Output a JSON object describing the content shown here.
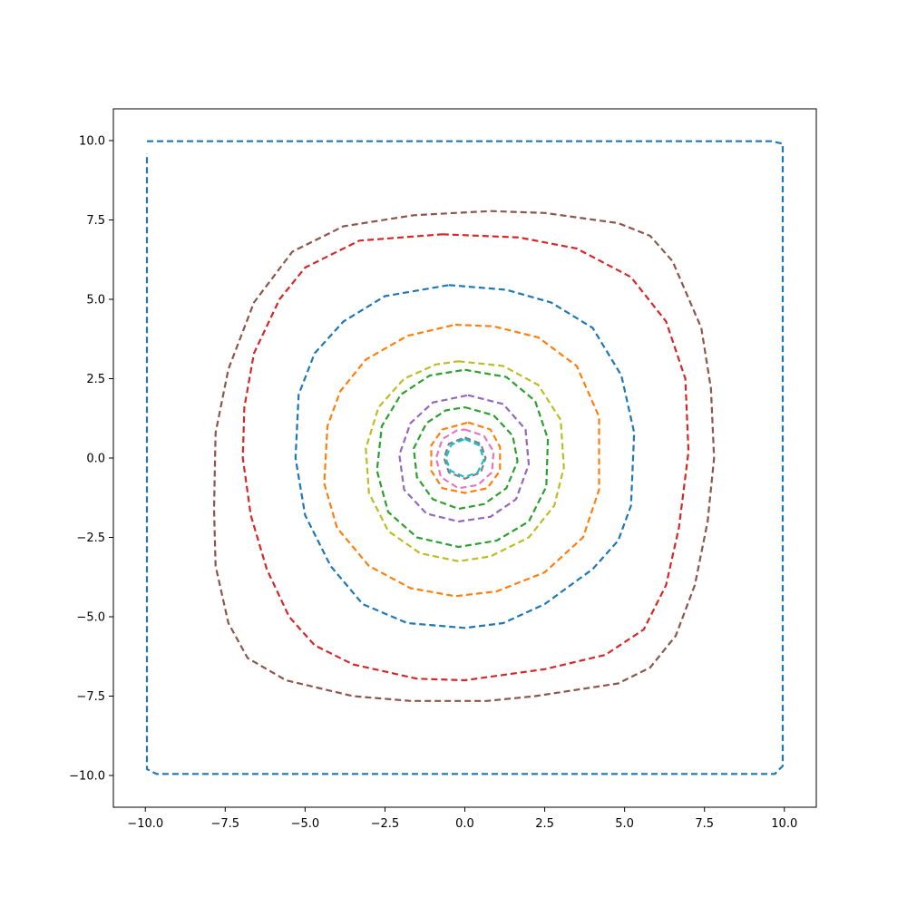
{
  "chart_data": {
    "type": "line",
    "title": "",
    "xlabel": "",
    "ylabel": "",
    "xlim": [
      -11,
      11
    ],
    "ylim": [
      -11,
      11
    ],
    "grid": false,
    "xticks": [
      {
        "value": -10,
        "label": "−10.0"
      },
      {
        "value": -7.5,
        "label": "−7.5"
      },
      {
        "value": -5,
        "label": "−5.0"
      },
      {
        "value": -2.5,
        "label": "−2.5"
      },
      {
        "value": 0,
        "label": "0.0"
      },
      {
        "value": 2.5,
        "label": "2.5"
      },
      {
        "value": 5,
        "label": "5.0"
      },
      {
        "value": 7.5,
        "label": "7.5"
      },
      {
        "value": 10,
        "label": "10.0"
      }
    ],
    "yticks": [
      {
        "value": -10,
        "label": "−10.0"
      },
      {
        "value": -7.5,
        "label": "−7.5"
      },
      {
        "value": -5,
        "label": "−5.0"
      },
      {
        "value": -2.5,
        "label": "−2.5"
      },
      {
        "value": 0,
        "label": "0.0"
      },
      {
        "value": 2.5,
        "label": "2.5"
      },
      {
        "value": 5,
        "label": "5.0"
      },
      {
        "value": 7.5,
        "label": "7.5"
      },
      {
        "value": 10,
        "label": "10.0"
      }
    ],
    "series": [
      {
        "color": "#1f77b4",
        "points": [
          [
            -9.95,
            9.98
          ],
          [
            -5,
            9.98
          ],
          [
            0,
            9.98
          ],
          [
            5,
            9.98
          ],
          [
            9.6,
            9.98
          ],
          [
            9.95,
            9.9
          ],
          [
            9.95,
            5
          ],
          [
            9.95,
            0
          ],
          [
            9.95,
            -5
          ],
          [
            9.95,
            -9.7
          ],
          [
            9.7,
            -9.95
          ],
          [
            5,
            -9.95
          ],
          [
            0,
            -9.95
          ],
          [
            -5,
            -9.95
          ],
          [
            -9.65,
            -9.95
          ],
          [
            -9.95,
            -9.8
          ],
          [
            -9.95,
            -5
          ],
          [
            -9.95,
            0
          ],
          [
            -9.95,
            5
          ],
          [
            -9.95,
            9.6
          ]
        ]
      },
      {
        "color": "#8c564b",
        "points": [
          [
            0.8,
            7.78
          ],
          [
            2.5,
            7.72
          ],
          [
            4.8,
            7.4
          ],
          [
            5.8,
            7.0
          ],
          [
            6.5,
            6.2
          ],
          [
            7.4,
            4.1
          ],
          [
            7.7,
            2.2
          ],
          [
            7.8,
            0
          ],
          [
            7.6,
            -2
          ],
          [
            7.2,
            -4
          ],
          [
            6.6,
            -5.6
          ],
          [
            5.8,
            -6.6
          ],
          [
            4.8,
            -7.1
          ],
          [
            2.2,
            -7.5
          ],
          [
            0.7,
            -7.65
          ],
          [
            -1.7,
            -7.65
          ],
          [
            -3.5,
            -7.5
          ],
          [
            -5.6,
            -7
          ],
          [
            -6.8,
            -6.3
          ],
          [
            -7.4,
            -5.2
          ],
          [
            -7.8,
            -3.4
          ],
          [
            -7.85,
            -1.6
          ],
          [
            -7.8,
            0.8
          ],
          [
            -7.4,
            2.8
          ],
          [
            -6.6,
            4.9
          ],
          [
            -5.4,
            6.5
          ],
          [
            -3.8,
            7.3
          ],
          [
            -1.6,
            7.65
          ],
          [
            0.8,
            7.78
          ]
        ]
      },
      {
        "color": "#d62728",
        "points": [
          [
            -0.7,
            7.05
          ],
          [
            1.7,
            6.95
          ],
          [
            3.5,
            6.6
          ],
          [
            5.2,
            5.7
          ],
          [
            6.3,
            4.3
          ],
          [
            6.9,
            2.5
          ],
          [
            7.0,
            0.2
          ],
          [
            6.7,
            -2.2
          ],
          [
            6.3,
            -4
          ],
          [
            5.6,
            -5.4
          ],
          [
            4.4,
            -6.2
          ],
          [
            2.5,
            -6.65
          ],
          [
            0,
            -7.0
          ],
          [
            -1.5,
            -6.95
          ],
          [
            -3.5,
            -6.5
          ],
          [
            -4.7,
            -5.9
          ],
          [
            -5.5,
            -5
          ],
          [
            -6.2,
            -3.5
          ],
          [
            -6.7,
            -1.8
          ],
          [
            -6.95,
            0
          ],
          [
            -6.9,
            1.6
          ],
          [
            -6.6,
            3.3
          ],
          [
            -5.8,
            5.0
          ],
          [
            -5.0,
            6.0
          ],
          [
            -3.3,
            6.85
          ],
          [
            -0.7,
            7.05
          ]
        ]
      },
      {
        "color": "#1f77b4",
        "points": [
          [
            -0.5,
            5.45
          ],
          [
            1.3,
            5.3
          ],
          [
            2.7,
            4.9
          ],
          [
            4.0,
            4.1
          ],
          [
            4.9,
            2.6
          ],
          [
            5.3,
            0.8
          ],
          [
            5.2,
            -1.5
          ],
          [
            4.8,
            -2.6
          ],
          [
            4.0,
            -3.5
          ],
          [
            2.5,
            -4.6
          ],
          [
            1.2,
            -5.2
          ],
          [
            0,
            -5.35
          ],
          [
            -1.8,
            -5.2
          ],
          [
            -3.2,
            -4.6
          ],
          [
            -4.2,
            -3.4
          ],
          [
            -5.0,
            -1.8
          ],
          [
            -5.3,
            0
          ],
          [
            -5.2,
            2.0
          ],
          [
            -4.7,
            3.3
          ],
          [
            -3.8,
            4.3
          ],
          [
            -2.5,
            5.1
          ],
          [
            -0.5,
            5.45
          ]
        ]
      },
      {
        "color": "#ff7f0e",
        "points": [
          [
            -0.3,
            4.2
          ],
          [
            0.9,
            4.15
          ],
          [
            2.3,
            3.8
          ],
          [
            3.5,
            2.9
          ],
          [
            4.2,
            1.3
          ],
          [
            4.2,
            -1.0
          ],
          [
            3.7,
            -2.5
          ],
          [
            2.5,
            -3.6
          ],
          [
            1.0,
            -4.2
          ],
          [
            -0.3,
            -4.35
          ],
          [
            -1.7,
            -4.1
          ],
          [
            -3.0,
            -3.4
          ],
          [
            -4.0,
            -2.2
          ],
          [
            -4.4,
            -0.8
          ],
          [
            -4.3,
            1.0
          ],
          [
            -3.9,
            2.1
          ],
          [
            -3.1,
            3.1
          ],
          [
            -1.8,
            3.85
          ],
          [
            -0.3,
            4.2
          ]
        ]
      },
      {
        "color": "#bcbd22",
        "points": [
          [
            -0.2,
            3.05
          ],
          [
            1.2,
            2.9
          ],
          [
            2.3,
            2.3
          ],
          [
            3.0,
            1.2
          ],
          [
            3.1,
            -0.3
          ],
          [
            2.8,
            -1.5
          ],
          [
            2.0,
            -2.5
          ],
          [
            0.8,
            -3.1
          ],
          [
            -0.2,
            -3.25
          ],
          [
            -1.4,
            -3.0
          ],
          [
            -2.4,
            -2.3
          ],
          [
            -3.0,
            -1.1
          ],
          [
            -3.1,
            0.3
          ],
          [
            -2.7,
            1.6
          ],
          [
            -1.9,
            2.5
          ],
          [
            -0.9,
            2.95
          ],
          [
            -0.2,
            3.05
          ]
        ]
      },
      {
        "color": "#2ca02c",
        "points": [
          [
            0,
            2.78
          ],
          [
            1.3,
            2.55
          ],
          [
            2.2,
            1.8
          ],
          [
            2.6,
            0.6
          ],
          [
            2.55,
            -0.9
          ],
          [
            2.0,
            -2.0
          ],
          [
            1.0,
            -2.6
          ],
          [
            -0.2,
            -2.8
          ],
          [
            -1.5,
            -2.5
          ],
          [
            -2.4,
            -1.7
          ],
          [
            -2.75,
            -0.4
          ],
          [
            -2.6,
            1.0
          ],
          [
            -2.0,
            2.0
          ],
          [
            -1.1,
            2.6
          ],
          [
            0,
            2.78
          ]
        ]
      },
      {
        "color": "#9467bd",
        "points": [
          [
            0.1,
            1.98
          ],
          [
            1.2,
            1.7
          ],
          [
            1.9,
            0.9
          ],
          [
            2.0,
            -0.2
          ],
          [
            1.6,
            -1.3
          ],
          [
            0.8,
            -1.85
          ],
          [
            -0.2,
            -2.0
          ],
          [
            -1.2,
            -1.75
          ],
          [
            -1.9,
            -1.0
          ],
          [
            -2.05,
            0.1
          ],
          [
            -1.7,
            1.1
          ],
          [
            -1.0,
            1.75
          ],
          [
            0.1,
            1.98
          ]
        ]
      },
      {
        "color": "#2ca02c",
        "points": [
          [
            0,
            1.6
          ],
          [
            0.9,
            1.35
          ],
          [
            1.5,
            0.7
          ],
          [
            1.65,
            -0.1
          ],
          [
            1.3,
            -0.95
          ],
          [
            0.6,
            -1.45
          ],
          [
            -0.2,
            -1.6
          ],
          [
            -1.0,
            -1.3
          ],
          [
            -1.5,
            -0.6
          ],
          [
            -1.6,
            0.3
          ],
          [
            -1.2,
            1.1
          ],
          [
            -0.6,
            1.5
          ],
          [
            0,
            1.6
          ]
        ]
      },
      {
        "color": "#ff7f0e",
        "points": [
          [
            0.1,
            1.12
          ],
          [
            0.8,
            0.9
          ],
          [
            1.1,
            0.35
          ],
          [
            1.1,
            -0.4
          ],
          [
            0.7,
            -0.95
          ],
          [
            0,
            -1.1
          ],
          [
            -0.7,
            -0.95
          ],
          [
            -1.05,
            -0.4
          ],
          [
            -1.05,
            0.4
          ],
          [
            -0.7,
            0.9
          ],
          [
            0.1,
            1.12
          ]
        ]
      },
      {
        "color": "#e377c2",
        "points": [
          [
            0,
            0.9
          ],
          [
            0.6,
            0.7
          ],
          [
            0.9,
            0.2
          ],
          [
            0.85,
            -0.45
          ],
          [
            0.4,
            -0.85
          ],
          [
            -0.2,
            -0.95
          ],
          [
            -0.75,
            -0.6
          ],
          [
            -0.9,
            0
          ],
          [
            -0.7,
            0.6
          ],
          [
            -0.25,
            0.87
          ],
          [
            0,
            0.9
          ]
        ]
      },
      {
        "color": "#7f7f7f",
        "points": [
          [
            0,
            0.65
          ],
          [
            0.5,
            0.45
          ],
          [
            0.65,
            0
          ],
          [
            0.5,
            -0.45
          ],
          [
            0,
            -0.65
          ],
          [
            -0.5,
            -0.45
          ],
          [
            -0.65,
            0
          ],
          [
            -0.5,
            0.45
          ],
          [
            0,
            0.65
          ]
        ]
      },
      {
        "color": "#17becf",
        "points": [
          [
            0,
            0.6
          ],
          [
            0.45,
            0.4
          ],
          [
            0.6,
            -0.05
          ],
          [
            0.4,
            -0.45
          ],
          [
            0,
            -0.6
          ],
          [
            -0.45,
            -0.4
          ],
          [
            -0.6,
            0
          ],
          [
            -0.42,
            0.42
          ],
          [
            0,
            0.6
          ]
        ]
      }
    ]
  }
}
